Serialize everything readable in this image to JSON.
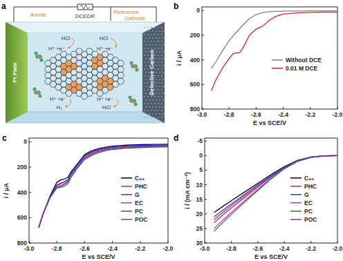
{
  "diagram": {
    "title": "a",
    "anode": "Anode",
    "source": "DCEDR",
    "reference": "Reference",
    "cathode": "Cathode",
    "anode_material": "Pt Plate",
    "cathode_material": "Defective Carbon",
    "acid": "HCl",
    "half_reaction": "H⁺ +e⁻",
    "gas": "H₂"
  },
  "chart_data": [
    {
      "title": "b",
      "type": "line",
      "xlabel": "E vs SCE/V",
      "ylabel": "i / μA",
      "legend": "right",
      "grid": false,
      "x": [
        -2.93,
        -2.9,
        -2.85,
        -2.8,
        -2.77,
        -2.75,
        -2.72,
        -2.7,
        -2.65,
        -2.6,
        -2.55,
        -2.5,
        -2.45,
        -2.4,
        -2.3,
        -2.2,
        -2.1,
        -2.0
      ],
      "xlim": [
        -3.0,
        -2.0
      ],
      "ylim": [
        800,
        -30
      ],
      "xticks": [
        {
          "value": -3.0,
          "label": "-3.0"
        },
        -2.8,
        -2.6,
        -2.4,
        -2.2,
        {
          "value": -2.0,
          "label": "-2.0"
        }
      ],
      "yticks": [
        0,
        200,
        400,
        600,
        800
      ],
      "series": [
        {
          "name": "Without DCE",
          "color": "#808080",
          "values": [
            470,
            420,
            330,
            245,
            205,
            180,
            145,
            120,
            65,
            32,
            16,
            9,
            6,
            4,
            3,
            2,
            2,
            1
          ]
        },
        {
          "name": "0.01 M DCE",
          "color": "#e0201b",
          "values": [
            650,
            570,
            470,
            390,
            350,
            345,
            340,
            310,
            200,
            150,
            125,
            75,
            45,
            28,
            18,
            14,
            12,
            12
          ]
        }
      ]
    },
    {
      "title": "c",
      "type": "line",
      "xlabel": "E vs SCE/V",
      "ylabel": "i / μA",
      "legend": "right",
      "grid": false,
      "x": [
        -2.93,
        -2.9,
        -2.85,
        -2.8,
        -2.77,
        -2.75,
        -2.72,
        -2.7,
        -2.65,
        -2.6,
        -2.55,
        -2.5,
        -2.45,
        -2.4,
        -2.3,
        -2.2,
        -2.1,
        -2.0
      ],
      "xlim": [
        -3.0,
        -2.0
      ],
      "ylim": [
        800,
        -30
      ],
      "xticks": [
        {
          "value": -3.0,
          "label": "-3.0"
        },
        -2.8,
        -2.6,
        -2.4,
        -2.2,
        {
          "value": -2.0,
          "label": "-2.0"
        }
      ],
      "yticks": [
        0,
        200,
        400,
        600,
        800
      ],
      "series": [
        {
          "name": "C₆₀",
          "color": "#000000",
          "values": [
            680,
            570,
            430,
            320,
            300,
            295,
            280,
            240,
            170,
            100,
            70,
            52,
            42,
            34,
            26,
            22,
            20,
            18
          ]
        },
        {
          "name": "PHC",
          "color": "#e8202a",
          "values": [
            680,
            575,
            440,
            345,
            330,
            320,
            300,
            255,
            180,
            115,
            85,
            65,
            52,
            44,
            36,
            32,
            30,
            28
          ]
        },
        {
          "name": "G",
          "color": "#2040e0",
          "values": [
            675,
            570,
            435,
            340,
            325,
            318,
            298,
            250,
            175,
            110,
            80,
            60,
            48,
            40,
            32,
            28,
            26,
            24
          ]
        },
        {
          "name": "EC",
          "color": "#e020c8",
          "values": [
            675,
            575,
            445,
            360,
            350,
            340,
            318,
            270,
            195,
            130,
            100,
            78,
            64,
            55,
            45,
            40,
            38,
            36
          ]
        },
        {
          "name": "PC",
          "color": "#208020",
          "values": [
            670,
            570,
            440,
            365,
            360,
            352,
            330,
            285,
            205,
            140,
            108,
            85,
            70,
            60,
            50,
            45,
            42,
            40
          ]
        },
        {
          "name": "POC",
          "color": "#8030d0",
          "values": [
            675,
            572,
            442,
            355,
            345,
            335,
            312,
            265,
            190,
            125,
            95,
            72,
            58,
            50,
            42,
            38,
            35,
            33
          ]
        }
      ]
    },
    {
      "title": "d",
      "type": "line",
      "xlabel": "E vs SCE/V",
      "ylabel": "i / (mA cm⁻²)",
      "legend": "right",
      "grid": false,
      "x": [
        -2.93,
        -2.85,
        -2.8,
        -2.7,
        -2.6,
        -2.5,
        -2.4,
        -2.3,
        -2.2,
        -2.1,
        -2.0
      ],
      "xlim": [
        -3.0,
        -2.0
      ],
      "ylim": [
        30,
        -6
      ],
      "xticks": [
        {
          "value": -3.0,
          "label": "-3.0"
        },
        -2.8,
        -2.6,
        -2.4,
        -2.2,
        {
          "value": -2.0,
          "label": "-2.0"
        }
      ],
      "yticks": [
        -5,
        0,
        5,
        10,
        15,
        20,
        25,
        30
      ],
      "series": [
        {
          "name": "C₆₀",
          "color": "#000000",
          "values": [
            19.5,
            17,
            15.5,
            12.5,
            9.5,
            6.5,
            3.8,
            1.6,
            0.5,
            0.1,
            0
          ]
        },
        {
          "name": "PHC",
          "color": "#e8202a",
          "values": [
            22,
            19,
            17.2,
            13.8,
            10.4,
            7.1,
            4.1,
            1.8,
            0.6,
            0.1,
            0
          ]
        },
        {
          "name": "G",
          "color": "#2040e0",
          "values": [
            21,
            18.3,
            16.6,
            13.3,
            10,
            6.9,
            4,
            1.7,
            0.5,
            0.1,
            0
          ]
        },
        {
          "name": "EC",
          "color": "#e020c8",
          "values": [
            25,
            21.6,
            19.5,
            15.5,
            11.6,
            7.8,
            4.4,
            1.9,
            0.6,
            0.1,
            0
          ]
        },
        {
          "name": "PC",
          "color": "#208020",
          "values": [
            26,
            22.4,
            20.2,
            16,
            12,
            8,
            4.5,
            2,
            0.6,
            0.1,
            0
          ]
        },
        {
          "name": "POC",
          "color": "#8030d0",
          "values": [
            23,
            19.9,
            18,
            14.4,
            10.8,
            7.3,
            4.2,
            1.8,
            0.6,
            0.1,
            0
          ]
        }
      ]
    }
  ]
}
